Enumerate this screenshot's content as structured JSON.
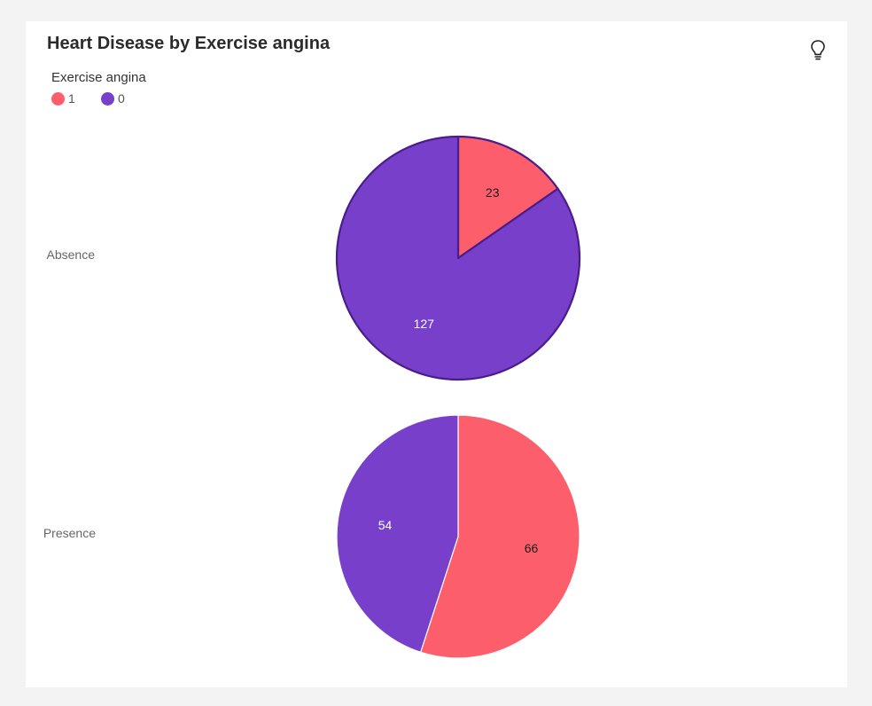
{
  "header": {
    "title": "Heart Disease by Exercise angina",
    "insight_icon": "lightbulb-icon"
  },
  "colors": {
    "category_1": "#fc5f6b",
    "category_0": "#783fcb",
    "highlight_stroke": "#4a1d8c",
    "label_dark": "#1a1a1a",
    "label_light": "#ffffff"
  },
  "chart_data": {
    "type": "pie",
    "title": "Heart Disease by Exercise angina",
    "legend": {
      "title": "Exercise angina",
      "position": "top-left",
      "entries": [
        "1",
        "0"
      ]
    },
    "series": [
      {
        "name": "Absence",
        "categories": [
          "1",
          "0"
        ],
        "values": [
          23,
          127
        ],
        "labels": [
          "23",
          "127"
        ]
      },
      {
        "name": "Presence",
        "categories": [
          "1",
          "0"
        ],
        "values": [
          66,
          54
        ],
        "labels": [
          "66",
          "54"
        ]
      }
    ]
  }
}
